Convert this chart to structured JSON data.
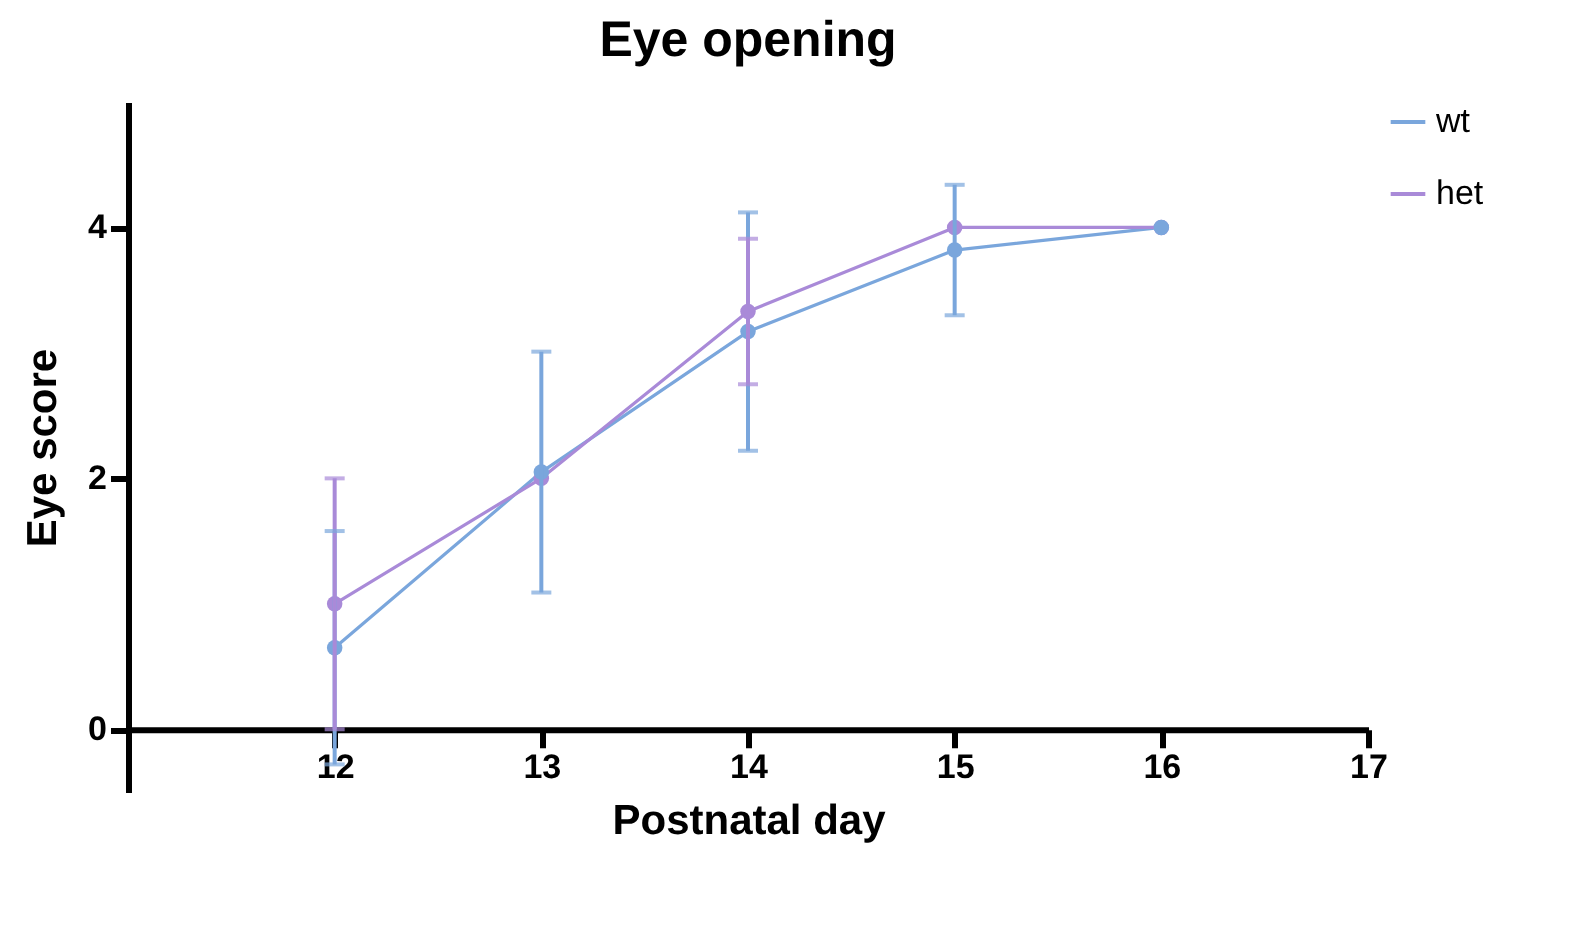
{
  "chart_data": {
    "type": "line",
    "title": "Eye opening",
    "xlabel": "Postnatal day",
    "ylabel": "Eye score",
    "x": [
      12,
      13,
      14,
      15,
      16
    ],
    "series": [
      {
        "name": "wt",
        "color": "#7aa6dc",
        "values": [
          0.65,
          2.05,
          3.17,
          3.82,
          4.0
        ],
        "errors": [
          0.93,
          0.96,
          0.95,
          0.52,
          null
        ]
      },
      {
        "name": "het",
        "color": "#a98ad8",
        "values": [
          1.0,
          2.0,
          3.33,
          4.0,
          4.0
        ],
        "errors": [
          1.0,
          null,
          0.58,
          null,
          null
        ]
      }
    ],
    "xlim": [
      11,
      17
    ],
    "xticks": [
      12,
      13,
      14,
      15,
      16,
      17
    ],
    "ylim": [
      -0.5,
      5
    ],
    "yticks": [
      0,
      2,
      4
    ],
    "grid": false,
    "legend": "top right",
    "marker": "circle",
    "line_style": "solid"
  }
}
